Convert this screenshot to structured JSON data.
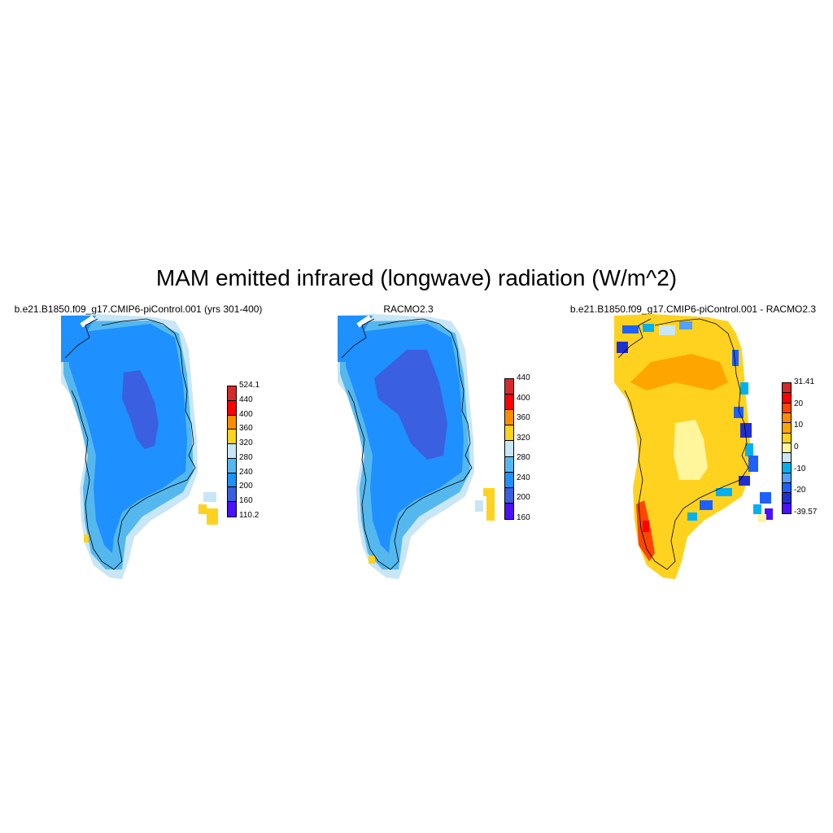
{
  "figure": {
    "title": "MAM emitted infrared (longwave) radiation (W/m^2)"
  },
  "panels": [
    {
      "id": "model",
      "title": "b.e21.B1850.f09_g17.CMIP6-piControl.001 (yrs 301-400)",
      "colorbar": {
        "labels": [
          "524.1",
          "440",
          "400",
          "360",
          "320",
          "280",
          "240",
          "200",
          "160",
          "110.2"
        ],
        "colors": [
          "#d62a2a",
          "#ff0000",
          "#ff8c00",
          "#ffd21f",
          "#c8e6f5",
          "#54b8ef",
          "#1e90ff",
          "#3a5fe0",
          "#4a10ff"
        ]
      },
      "field_colors": {
        "ocean_mask": "#ffffff",
        "main": "#1e90ff",
        "interior": "#3a5fe0",
        "margin": "#54b8ef",
        "edge": "#c8e6f5",
        "warm": "#ffd21f"
      }
    },
    {
      "id": "obs",
      "title": "RACMO2.3",
      "colorbar": {
        "labels": [
          "440",
          "400",
          "360",
          "320",
          "280",
          "240",
          "200",
          "160"
        ],
        "colors": [
          "#d62a2a",
          "#ff0000",
          "#ff8c00",
          "#ffd21f",
          "#c8e6f5",
          "#54b8ef",
          "#1e90ff",
          "#3a5fe0",
          "#4a10ff"
        ]
      },
      "field_colors": {
        "ocean_mask": "#ffffff",
        "main": "#1e90ff",
        "interior": "#3a5fe0",
        "margin": "#54b8ef",
        "edge": "#c8e6f5",
        "warm": "#ffd21f"
      }
    },
    {
      "id": "diff",
      "title": "b.e21.B1850.f09_g17.CMIP6-piControl.001 - RACMO2.3",
      "colorbar": {
        "labels": [
          "31.41",
          "20",
          "10",
          "0",
          "-10",
          "-20",
          "-39.57"
        ],
        "colors": [
          "#d62a2a",
          "#ff0000",
          "#ff4500",
          "#ff8c00",
          "#ffa500",
          "#ffd21f",
          "#fff59a",
          "#c8e6f5",
          "#00b0f0",
          "#54a0ff",
          "#1e60ff",
          "#2030d0",
          "#4a10ff"
        ]
      },
      "field_colors": {
        "main": "#ffd21f",
        "interior": "#fff59a",
        "orange": "#ffa500",
        "red": "#ff4500",
        "blue": "#1e60ff",
        "cyan": "#00b0f0",
        "light": "#c8e6f5"
      }
    }
  ]
}
